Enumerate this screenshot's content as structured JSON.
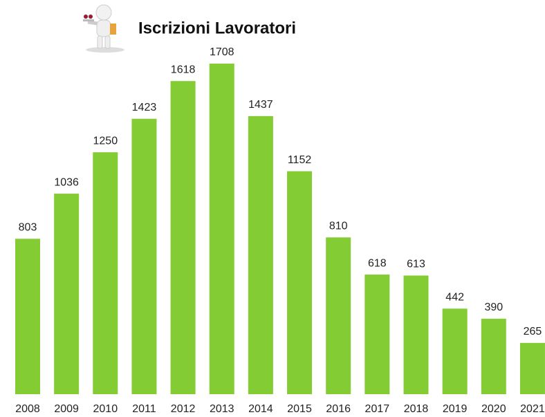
{
  "chart_data": {
    "type": "bar",
    "title": "Iscrizioni Lavoratori",
    "categories": [
      "2008",
      "2009",
      "2010",
      "2011",
      "2012",
      "2013",
      "2014",
      "2015",
      "2016",
      "2017",
      "2018",
      "2019",
      "2020",
      "2021"
    ],
    "values": [
      803,
      1036,
      1250,
      1423,
      1618,
      1708,
      1437,
      1152,
      810,
      618,
      613,
      442,
      390,
      265
    ],
    "color": "#84cc34"
  }
}
